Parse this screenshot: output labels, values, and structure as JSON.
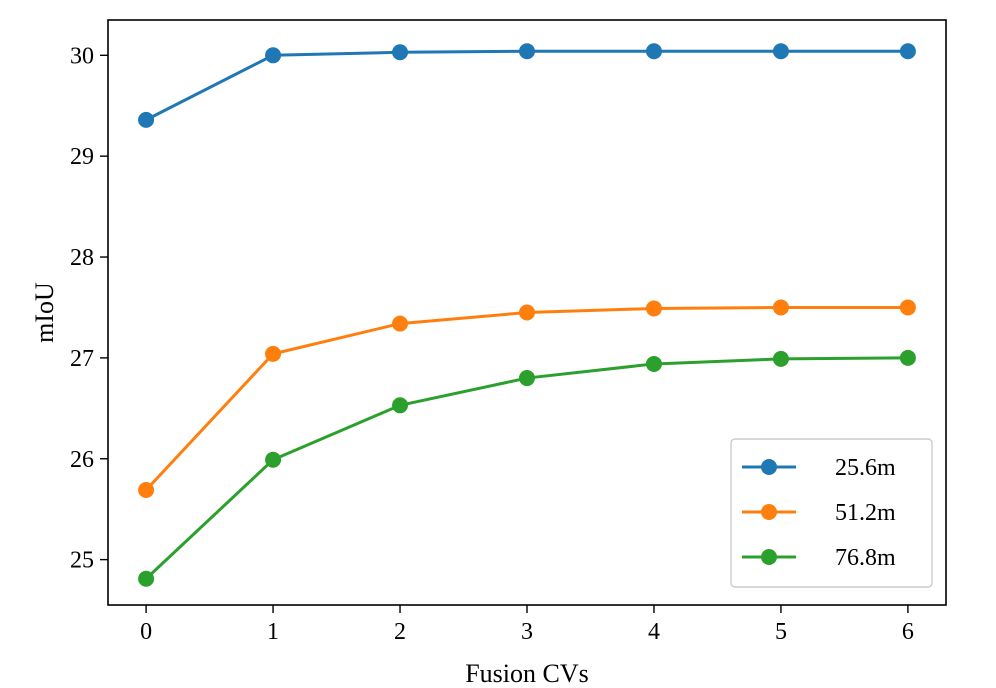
{
  "chart_data": {
    "type": "line",
    "title": "",
    "xlabel": "Fusion CVs",
    "ylabel": "mIoU",
    "x": [
      0,
      1,
      2,
      3,
      4,
      5,
      6
    ],
    "xlim": [
      -0.3,
      6.3
    ],
    "ylim": [
      24.55,
      30.35
    ],
    "xticks": [
      "0",
      "1",
      "2",
      "3",
      "4",
      "5",
      "6"
    ],
    "yticks": [
      "25",
      "26",
      "27",
      "28",
      "29",
      "30"
    ],
    "grid": false,
    "legend_position": "lower-right",
    "series": [
      {
        "name": "25.6m",
        "color": "#1f77b4",
        "values": [
          29.36,
          30.0,
          30.03,
          30.04,
          30.04,
          30.04,
          30.04
        ]
      },
      {
        "name": "51.2m",
        "color": "#ff7f0e",
        "values": [
          25.69,
          27.04,
          27.34,
          27.45,
          27.49,
          27.5,
          27.5
        ]
      },
      {
        "name": "76.8m",
        "color": "#2ca02c",
        "values": [
          24.81,
          25.99,
          26.53,
          26.8,
          26.94,
          26.99,
          27.0
        ]
      }
    ]
  }
}
